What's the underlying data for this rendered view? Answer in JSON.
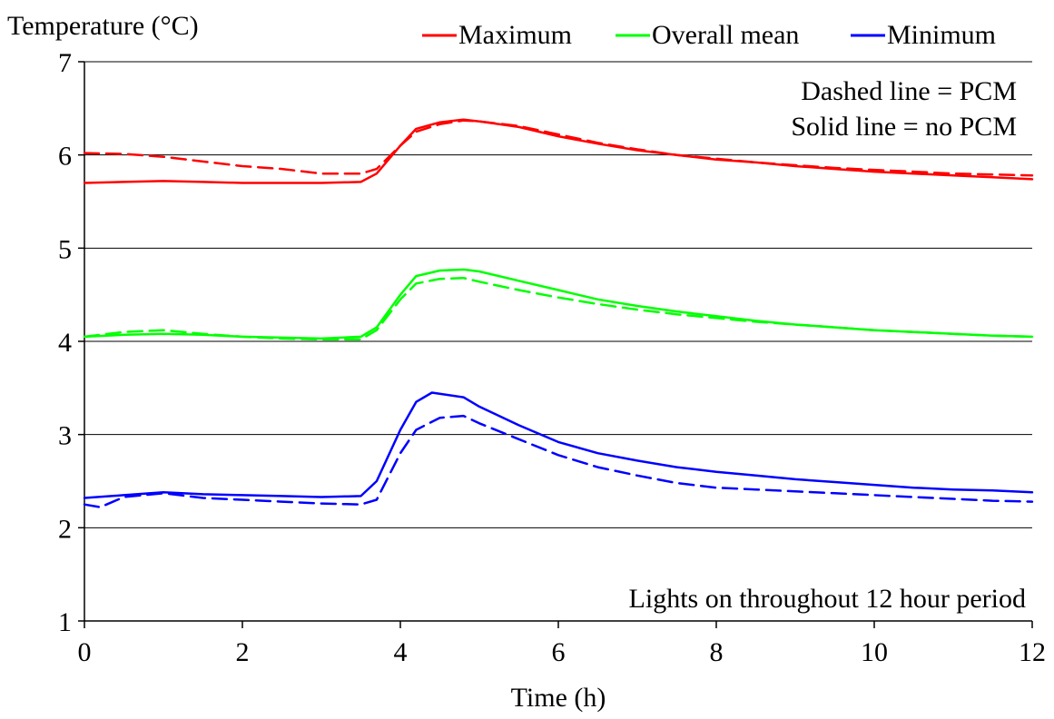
{
  "chart_data": {
    "type": "line",
    "title": "",
    "xlabel": "Time (h)",
    "ylabel": "Temperature (°C)",
    "xlim": [
      0,
      12
    ],
    "ylim": [
      1,
      7
    ],
    "xticks": [
      "0",
      "2",
      "4",
      "6",
      "8",
      "10",
      "12"
    ],
    "yticks": [
      "1",
      "2",
      "3",
      "4",
      "5",
      "6",
      "7"
    ],
    "grid": "horizontal",
    "legend_placement": "top",
    "legend": [
      {
        "name": "Maximum",
        "color": "#ff0000"
      },
      {
        "name": "Overall mean",
        "color": "#00ff00"
      },
      {
        "name": "Minimum",
        "color": "#0000ff"
      }
    ],
    "annotations": {
      "dashed_note": "Dashed line = PCM",
      "solid_note": "Solid line = no PCM",
      "lights_note": "Lights on throughout 12 hour period"
    },
    "series": [
      {
        "group": "Maximum",
        "style": "solid",
        "color": "#ff0000",
        "x": [
          0,
          0.5,
          1,
          1.5,
          2,
          2.5,
          3,
          3.5,
          3.7,
          4,
          4.2,
          4.5,
          4.8,
          5,
          5.5,
          6,
          6.5,
          7,
          7.5,
          8,
          8.5,
          9,
          9.5,
          10,
          10.5,
          11,
          11.5,
          12
        ],
        "y": [
          5.7,
          5.71,
          5.72,
          5.71,
          5.7,
          5.7,
          5.7,
          5.71,
          5.8,
          6.1,
          6.28,
          6.35,
          6.38,
          6.36,
          6.3,
          6.2,
          6.12,
          6.05,
          6.0,
          5.95,
          5.92,
          5.88,
          5.85,
          5.82,
          5.8,
          5.78,
          5.76,
          5.74
        ]
      },
      {
        "group": "Maximum",
        "style": "dashed",
        "color": "#ff0000",
        "x": [
          0,
          0.5,
          1,
          1.5,
          2,
          2.5,
          3,
          3.5,
          3.7,
          4,
          4.2,
          4.5,
          4.8,
          5,
          5.5,
          6,
          6.5,
          7,
          7.5,
          8,
          8.5,
          9,
          9.5,
          10,
          10.5,
          11,
          11.5,
          12
        ],
        "y": [
          6.02,
          6.01,
          5.98,
          5.93,
          5.88,
          5.85,
          5.8,
          5.8,
          5.85,
          6.1,
          6.25,
          6.33,
          6.37,
          6.36,
          6.31,
          6.22,
          6.13,
          6.06,
          6.0,
          5.96,
          5.92,
          5.89,
          5.86,
          5.84,
          5.82,
          5.8,
          5.79,
          5.78
        ]
      },
      {
        "group": "Overall mean",
        "style": "solid",
        "color": "#00ff00",
        "x": [
          0,
          0.5,
          1,
          1.5,
          2,
          2.5,
          3,
          3.5,
          3.7,
          4,
          4.2,
          4.5,
          4.8,
          5,
          5.5,
          6,
          6.5,
          7,
          7.5,
          8,
          8.5,
          9,
          9.5,
          10,
          10.5,
          11,
          11.5,
          12
        ],
        "y": [
          4.05,
          4.07,
          4.08,
          4.07,
          4.05,
          4.04,
          4.03,
          4.05,
          4.15,
          4.5,
          4.7,
          4.76,
          4.77,
          4.75,
          4.65,
          4.55,
          4.45,
          4.38,
          4.32,
          4.27,
          4.22,
          4.18,
          4.15,
          4.12,
          4.1,
          4.08,
          4.06,
          4.05
        ]
      },
      {
        "group": "Overall mean",
        "style": "dashed",
        "color": "#00ff00",
        "x": [
          0,
          0.5,
          1,
          1.5,
          2,
          2.5,
          3,
          3.5,
          3.7,
          4,
          4.2,
          4.5,
          4.8,
          5,
          5.5,
          6,
          6.5,
          7,
          7.5,
          8,
          8.5,
          9,
          9.5,
          10,
          10.5,
          11,
          11.5,
          12
        ],
        "y": [
          4.05,
          4.1,
          4.12,
          4.08,
          4.05,
          4.03,
          4.02,
          4.02,
          4.12,
          4.45,
          4.62,
          4.67,
          4.68,
          4.64,
          4.55,
          4.47,
          4.4,
          4.34,
          4.29,
          4.25,
          4.21,
          4.18,
          4.15,
          4.12,
          4.1,
          4.08,
          4.06,
          4.05
        ]
      },
      {
        "group": "Minimum",
        "style": "solid",
        "color": "#0000ff",
        "x": [
          0,
          0.5,
          1,
          1.5,
          2,
          2.5,
          3,
          3.5,
          3.7,
          4,
          4.2,
          4.4,
          4.8,
          5,
          5.5,
          6,
          6.5,
          7,
          7.5,
          8,
          8.5,
          9,
          9.5,
          10,
          10.5,
          11,
          11.5,
          12
        ],
        "y": [
          2.32,
          2.35,
          2.38,
          2.36,
          2.35,
          2.34,
          2.33,
          2.34,
          2.5,
          3.05,
          3.35,
          3.45,
          3.4,
          3.3,
          3.1,
          2.92,
          2.8,
          2.72,
          2.65,
          2.6,
          2.56,
          2.52,
          2.49,
          2.46,
          2.43,
          2.41,
          2.4,
          2.38
        ]
      },
      {
        "group": "Minimum",
        "style": "dashed",
        "color": "#0000ff",
        "x": [
          0,
          0.2,
          0.5,
          1,
          1.5,
          2,
          2.5,
          3,
          3.5,
          3.7,
          4,
          4.2,
          4.5,
          4.8,
          5,
          5.5,
          6,
          6.5,
          7,
          7.5,
          8,
          8.5,
          9,
          9.5,
          10,
          10.5,
          11,
          11.5,
          12
        ],
        "y": [
          2.25,
          2.22,
          2.33,
          2.37,
          2.32,
          2.3,
          2.28,
          2.26,
          2.25,
          2.3,
          2.8,
          3.05,
          3.18,
          3.2,
          3.12,
          2.95,
          2.78,
          2.65,
          2.56,
          2.48,
          2.43,
          2.41,
          2.39,
          2.37,
          2.35,
          2.33,
          2.31,
          2.29,
          2.28
        ]
      }
    ]
  }
}
